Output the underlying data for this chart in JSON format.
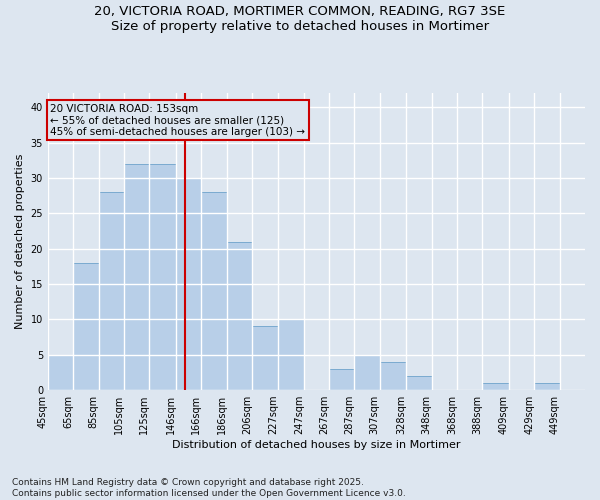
{
  "title_line1": "20, VICTORIA ROAD, MORTIMER COMMON, READING, RG7 3SE",
  "title_line2": "Size of property relative to detached houses in Mortimer",
  "xlabel": "Distribution of detached houses by size in Mortimer",
  "ylabel": "Number of detached properties",
  "bar_labels": [
    "45sqm",
    "65sqm",
    "85sqm",
    "105sqm",
    "125sqm",
    "146sqm",
    "166sqm",
    "186sqm",
    "206sqm",
    "227sqm",
    "247sqm",
    "267sqm",
    "287sqm",
    "307sqm",
    "328sqm",
    "348sqm",
    "368sqm",
    "388sqm",
    "409sqm",
    "429sqm",
    "449sqm"
  ],
  "bar_values": [
    5,
    18,
    28,
    32,
    32,
    30,
    28,
    21,
    9,
    10,
    0,
    3,
    5,
    4,
    2,
    0,
    0,
    1,
    0,
    1,
    0
  ],
  "bar_color": "#b8cfe8",
  "bar_edgecolor": "#7aaad0",
  "bg_color": "#dde6f0",
  "grid_color": "#ffffff",
  "bin_edges": [
    45,
    65,
    85,
    105,
    125,
    146,
    166,
    186,
    206,
    227,
    247,
    267,
    287,
    307,
    328,
    348,
    368,
    388,
    409,
    429,
    449
  ],
  "bin_widths": [
    20,
    20,
    20,
    20,
    21,
    20,
    20,
    20,
    21,
    20,
    20,
    20,
    20,
    21,
    20,
    20,
    20,
    21,
    20,
    20,
    20
  ],
  "annotation_title": "20 VICTORIA ROAD: 153sqm",
  "annotation_line2": "← 55% of detached houses are smaller (125)",
  "annotation_line3": "45% of semi-detached houses are larger (103) →",
  "annotation_box_color": "#cc0000",
  "vline_value": 153,
  "ylim": [
    0,
    42
  ],
  "yticks": [
    0,
    5,
    10,
    15,
    20,
    25,
    30,
    35,
    40
  ],
  "footnote": "Contains HM Land Registry data © Crown copyright and database right 2025.\nContains public sector information licensed under the Open Government Licence v3.0.",
  "footnote_fontsize": 6.5,
  "title_fontsize": 9.5,
  "label_fontsize": 8,
  "tick_fontsize": 7,
  "annot_fontsize": 7.5
}
